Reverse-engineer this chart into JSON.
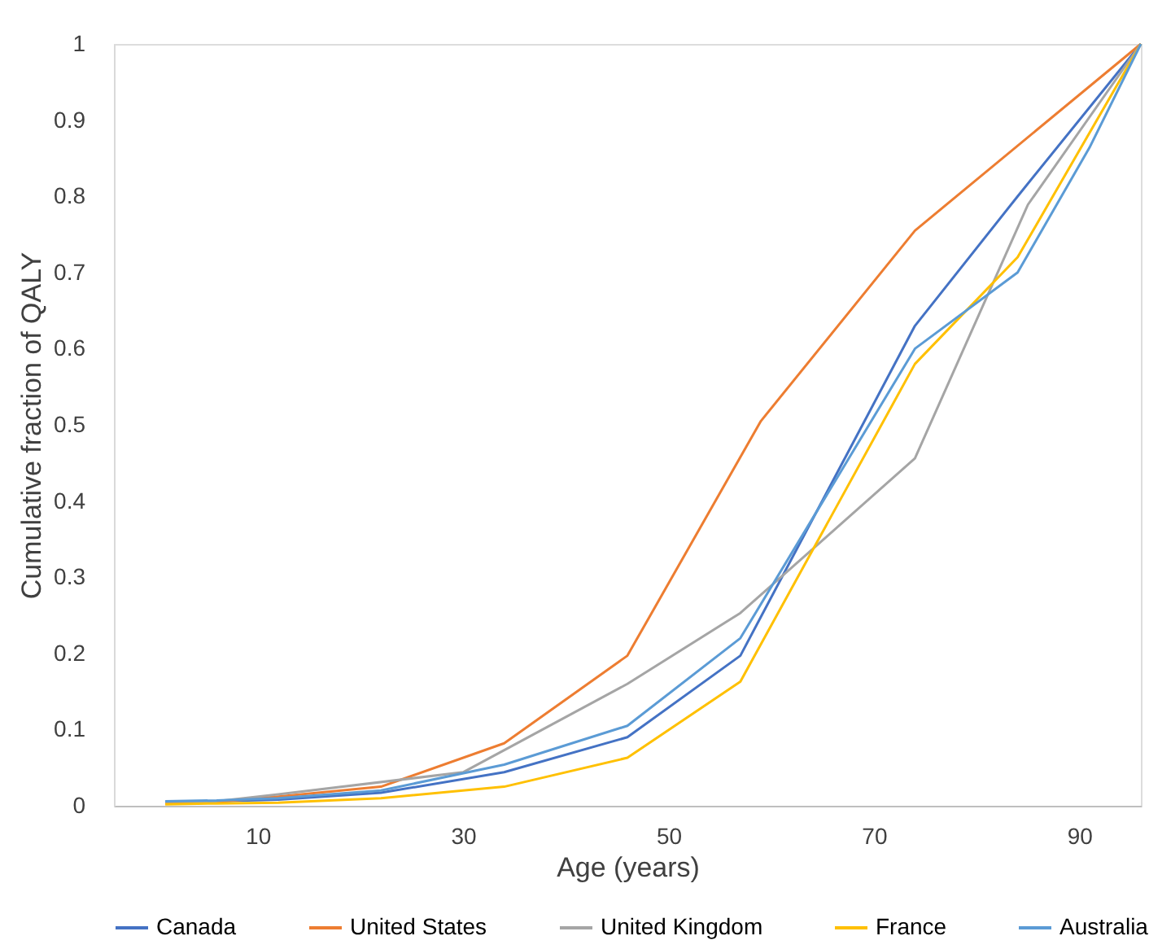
{
  "chart_data": {
    "type": "line",
    "xlabel": "Age (years)",
    "ylabel": "Cumulative  fraction of QALY",
    "xlim": [
      -4,
      96
    ],
    "xticks": [
      10,
      30,
      50,
      70,
      90
    ],
    "ylim": [
      0,
      1
    ],
    "yticks": [
      0,
      0.1,
      0.2,
      0.3,
      0.4,
      0.5,
      0.6,
      0.7,
      0.8,
      0.9,
      1
    ],
    "grid": false,
    "legend": "bottom",
    "marker": "none",
    "line_style": "solid",
    "series": [
      {
        "name": "Canada",
        "color": "#4472c4",
        "x": [
          1,
          6,
          12,
          22,
          34,
          46,
          57,
          74,
          84,
          96
        ],
        "values": [
          0.005,
          0.006,
          0.008,
          0.017,
          0.044,
          0.09,
          0.197,
          0.63,
          0.8,
          1.0
        ]
      },
      {
        "name": "United States",
        "color": "#ed7d31",
        "x": [
          1,
          6,
          12,
          22,
          34,
          46,
          59,
          74,
          96
        ],
        "values": [
          0.003,
          0.005,
          0.012,
          0.025,
          0.082,
          0.197,
          0.505,
          0.755,
          1.0
        ]
      },
      {
        "name": "United Kingdom",
        "color": "#a5a5a5",
        "x": [
          1,
          6,
          12,
          30,
          46,
          57,
          74,
          85,
          96
        ],
        "values": [
          0.005,
          0.006,
          0.015,
          0.044,
          0.16,
          0.253,
          0.456,
          0.789,
          1.0
        ]
      },
      {
        "name": "France",
        "color": "#ffc000",
        "x": [
          1,
          6,
          12,
          22,
          34,
          46,
          57,
          74,
          84,
          96
        ],
        "values": [
          0.002,
          0.003,
          0.004,
          0.01,
          0.025,
          0.063,
          0.163,
          0.58,
          0.72,
          1.0
        ]
      },
      {
        "name": "Australia",
        "color": "#5b9bd5",
        "x": [
          1,
          6,
          12,
          22,
          34,
          46,
          57,
          74,
          84,
          91,
          96
        ],
        "values": [
          0.006,
          0.007,
          0.01,
          0.02,
          0.054,
          0.105,
          0.22,
          0.6,
          0.7,
          0.864,
          1.0
        ]
      }
    ]
  }
}
